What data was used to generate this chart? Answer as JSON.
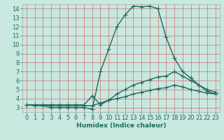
{
  "x": [
    0,
    1,
    2,
    3,
    4,
    5,
    6,
    7,
    8,
    9,
    10,
    11,
    12,
    13,
    14,
    15,
    16,
    17,
    18,
    19,
    20,
    21,
    22,
    23
  ],
  "line1": [
    3.3,
    3.2,
    3.2,
    3.0,
    3.0,
    3.0,
    3.0,
    3.0,
    2.8,
    7.0,
    9.5,
    12.0,
    13.3,
    14.3,
    14.2,
    14.3,
    14.0,
    10.8,
    8.5,
    7.0,
    6.3,
    5.5,
    4.8,
    4.5
  ],
  "line2": [
    3.3,
    3.3,
    3.3,
    3.3,
    3.3,
    3.3,
    3.3,
    3.3,
    4.3,
    3.3,
    3.8,
    4.5,
    5.0,
    5.5,
    5.8,
    6.1,
    6.4,
    6.5,
    7.0,
    6.5,
    6.0,
    5.5,
    5.0,
    4.7
  ],
  "line3": [
    3.3,
    3.3,
    3.3,
    3.2,
    3.2,
    3.2,
    3.2,
    3.2,
    3.2,
    3.5,
    3.8,
    4.0,
    4.2,
    4.5,
    4.7,
    4.9,
    5.1,
    5.2,
    5.5,
    5.3,
    5.0,
    4.8,
    4.6,
    4.5
  ],
  "line_color": "#1e6b5e",
  "bg_color": "#c8e8e0",
  "grid_color_v": "#e08080",
  "grid_color_h": "#e08080",
  "xlabel": "Humidex (Indice chaleur)",
  "ylim": [
    2.5,
    14.5
  ],
  "xlim": [
    -0.5,
    23.5
  ],
  "yticks": [
    3,
    4,
    5,
    6,
    7,
    8,
    9,
    10,
    11,
    12,
    13,
    14
  ],
  "xticks": [
    0,
    1,
    2,
    3,
    4,
    5,
    6,
    7,
    8,
    9,
    10,
    11,
    12,
    13,
    14,
    15,
    16,
    17,
    18,
    19,
    20,
    21,
    22,
    23
  ],
  "marker": "+",
  "markersize": 4,
  "linewidth": 1.0,
  "fontsize_label": 6.5,
  "fontsize_tick": 6.0
}
